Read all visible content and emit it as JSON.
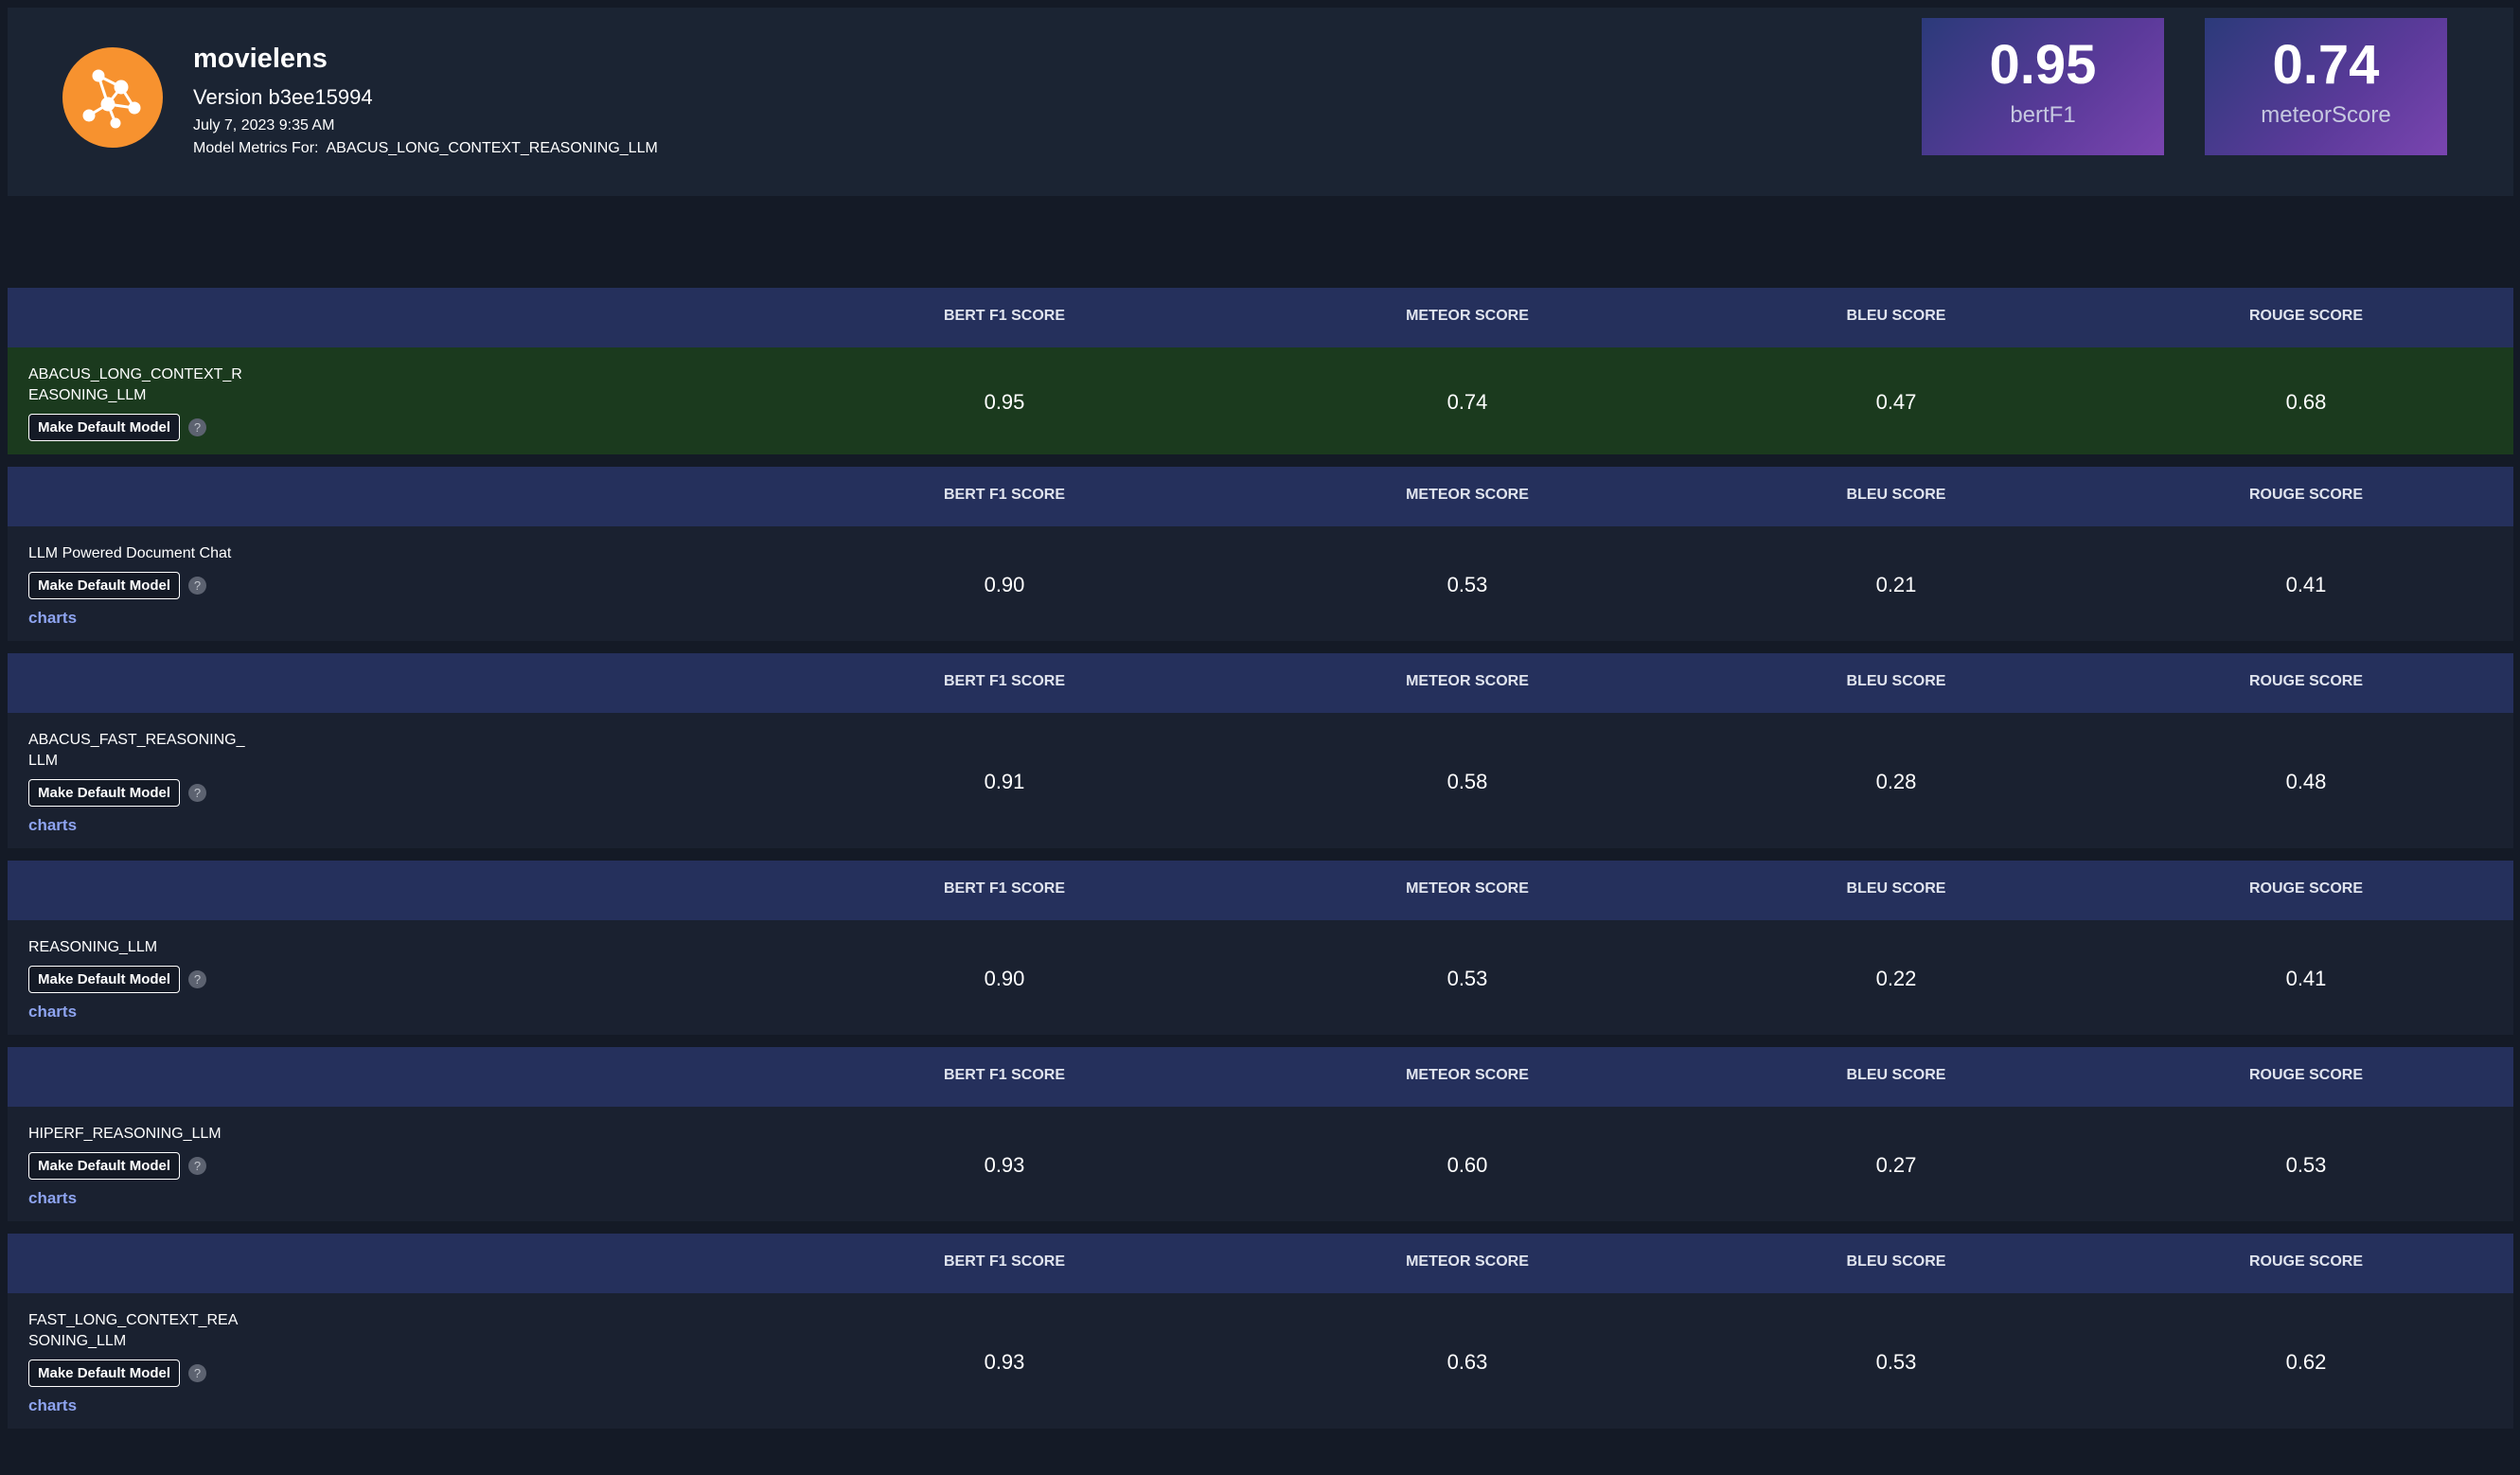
{
  "header": {
    "title": "movielens",
    "version": "Version b3ee15994",
    "date": "July 7, 2023 9:35 AM",
    "metrics_for_label": "Model Metrics For:",
    "metrics_for_value": "ABACUS_LONG_CONTEXT_REASONING_LLM"
  },
  "cards": [
    {
      "value": "0.95",
      "label": "bertF1"
    },
    {
      "value": "0.74",
      "label": "meteorScore"
    }
  ],
  "columns": [
    "BERT F1 SCORE",
    "METEOR SCORE",
    "BLEU SCORE",
    "ROUGE SCORE"
  ],
  "button_label": "Make Default Model",
  "help_icon": "?",
  "models": [
    {
      "name": "ABACUS_LONG_CONTEXT_REASONING_LLM",
      "scores": [
        "0.95",
        "0.74",
        "0.47",
        "0.68"
      ]
    },
    {
      "name": "LLM Powered Document Chat",
      "scores": [
        "0.90",
        "0.53",
        "0.21",
        "0.41"
      ],
      "link": "charts"
    },
    {
      "name": "ABACUS_FAST_REASONING_LLM",
      "scores": [
        "0.91",
        "0.58",
        "0.28",
        "0.48"
      ],
      "link": "charts"
    },
    {
      "name": "REASONING_LLM",
      "scores": [
        "0.90",
        "0.53",
        "0.22",
        "0.41"
      ],
      "link": "charts"
    },
    {
      "name": "HIPERF_REASONING_LLM",
      "scores": [
        "0.93",
        "0.60",
        "0.27",
        "0.53"
      ],
      "link": "charts"
    },
    {
      "name": "FAST_LONG_CONTEXT_REASONING_LLM",
      "scores": [
        "0.93",
        "0.63",
        "0.53",
        "0.62"
      ],
      "link": "charts"
    }
  ]
}
